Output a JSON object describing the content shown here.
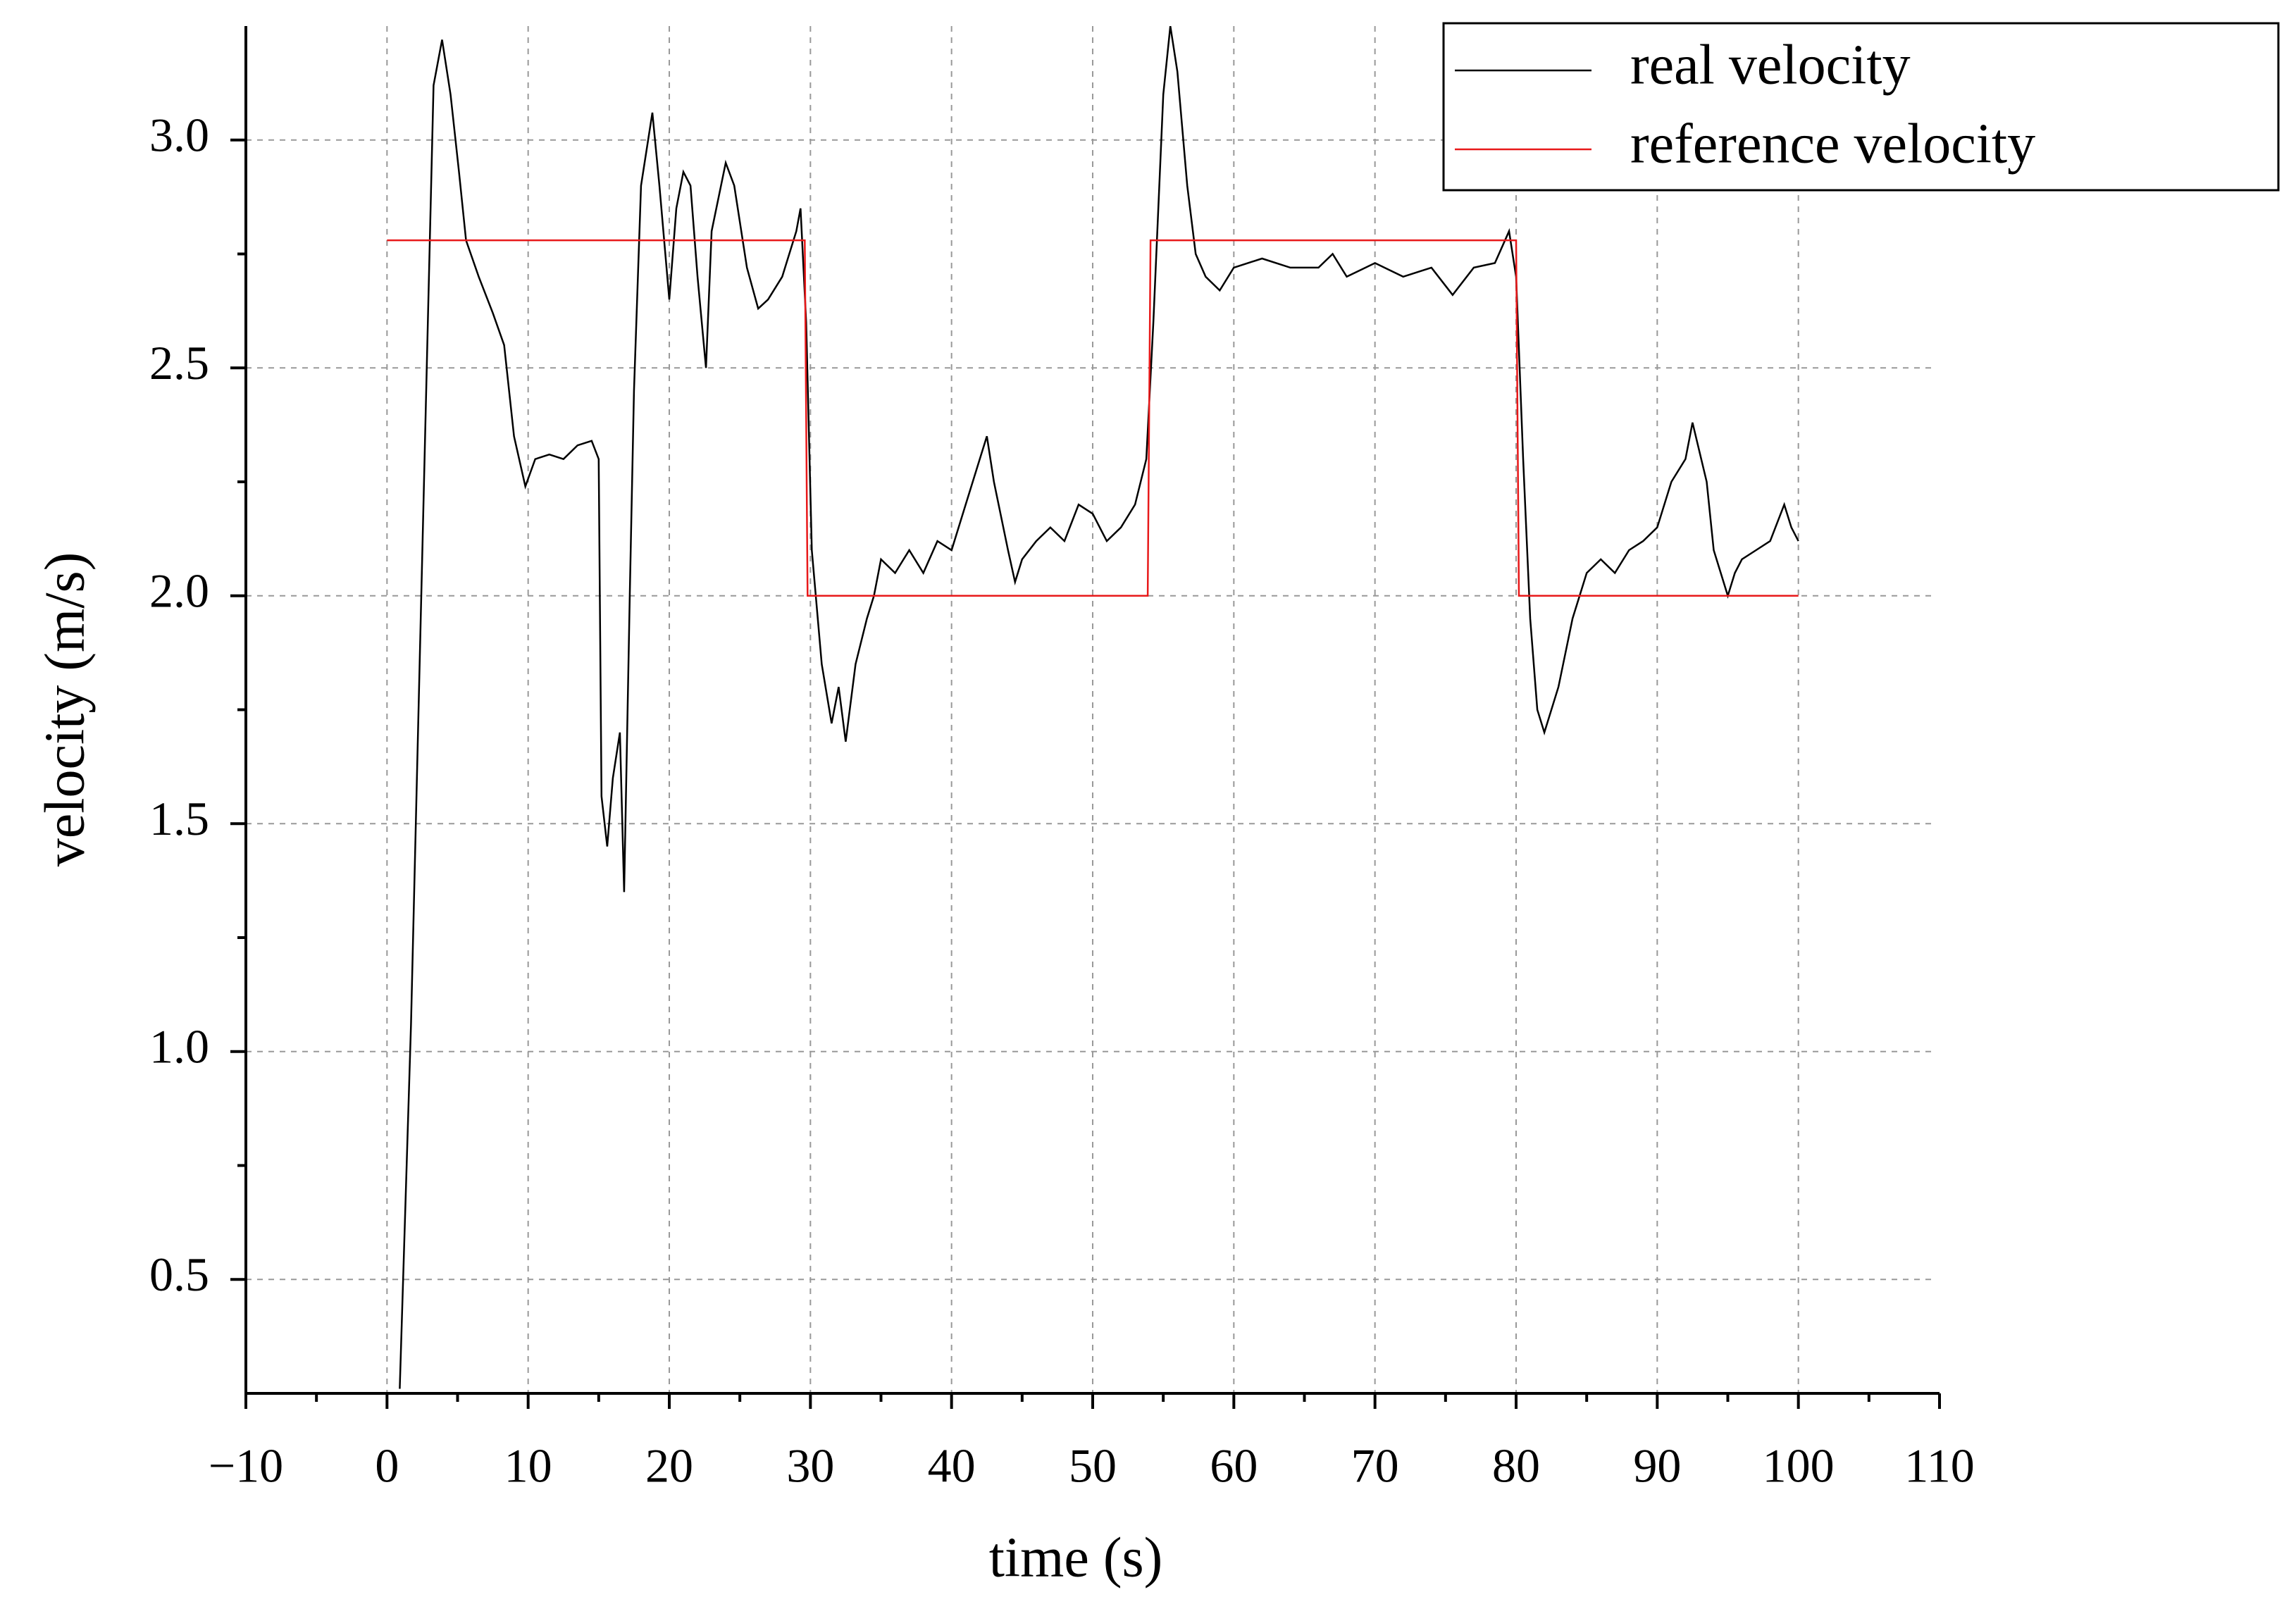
{
  "chart_data": {
    "type": "line",
    "xlabel": "time (s)",
    "ylabel": "velocity (m/s)",
    "xlim": [
      -10,
      110
    ],
    "ylim": [
      0.25,
      3.25
    ],
    "xticks": [
      {
        "value": -10,
        "label": "−10"
      },
      0,
      10,
      20,
      30,
      40,
      50,
      60,
      70,
      80,
      90,
      100,
      110
    ],
    "yticks": [
      0.5,
      {
        "value": 1,
        "label": "1.0"
      },
      1.5,
      {
        "value": 2,
        "label": "2.0"
      },
      2.5,
      {
        "value": 3,
        "label": "3.0"
      }
    ],
    "grid": true,
    "legend": "upper right",
    "series": [
      {
        "name": "real velocity",
        "color": "#000000",
        "x": [
          0.9,
          1.7,
          2.7,
          3.3,
          3.9,
          4.5,
          5.1,
          5.6,
          6.5,
          7.5,
          8.3,
          9,
          9.8,
          10.5,
          11.5,
          12.5,
          13.5,
          14.5,
          15,
          15.2,
          15.6,
          16,
          16.5,
          16.8,
          17.2,
          17.5,
          18,
          18.8,
          19.3,
          20,
          20.5,
          21,
          21.5,
          22,
          22.6,
          23,
          24,
          24.6,
          25.5,
          26.3,
          27,
          28,
          29,
          29.3,
          29.7,
          30.1,
          30.8,
          31.5,
          32,
          32.5,
          33.2,
          34,
          34.5,
          35,
          36,
          37,
          38,
          39,
          40,
          41,
          42,
          42.5,
          43,
          44,
          44.5,
          45,
          46,
          47,
          48,
          49,
          50,
          51,
          52,
          53,
          53.8,
          54.3,
          55,
          55.5,
          56,
          56.7,
          57.3,
          58,
          59,
          60,
          62,
          64,
          66,
          67,
          68,
          70,
          72,
          74,
          75.5,
          77,
          78.5,
          79.5,
          80,
          80.5,
          81,
          81.5,
          82,
          83,
          84,
          85,
          86,
          87,
          88,
          89,
          90,
          91,
          92,
          92.5,
          93.5,
          94,
          95,
          95.5,
          96,
          97,
          98,
          99,
          99.5,
          100
        ],
        "values": [
          0.26,
          1.06,
          2.35,
          3.12,
          3.22,
          3.1,
          2.93,
          2.78,
          2.7,
          2.62,
          2.55,
          2.35,
          2.24,
          2.3,
          2.31,
          2.3,
          2.33,
          2.34,
          2.3,
          1.56,
          1.45,
          1.6,
          1.7,
          1.35,
          2.0,
          2.45,
          2.9,
          3.06,
          2.9,
          2.65,
          2.85,
          2.93,
          2.9,
          2.7,
          2.5,
          2.8,
          2.95,
          2.9,
          2.72,
          2.63,
          2.65,
          2.7,
          2.8,
          2.85,
          2.6,
          2.1,
          1.85,
          1.72,
          1.8,
          1.68,
          1.85,
          1.95,
          2.0,
          2.08,
          2.05,
          2.1,
          2.05,
          2.12,
          2.1,
          2.2,
          2.3,
          2.35,
          2.25,
          2.1,
          2.03,
          2.08,
          2.12,
          2.15,
          2.12,
          2.2,
          2.18,
          2.12,
          2.15,
          2.2,
          2.3,
          2.6,
          3.1,
          3.25,
          3.15,
          2.9,
          2.75,
          2.7,
          2.67,
          2.72,
          2.74,
          2.72,
          2.72,
          2.75,
          2.7,
          2.73,
          2.7,
          2.72,
          2.66,
          2.72,
          2.73,
          2.8,
          2.7,
          2.3,
          1.95,
          1.75,
          1.7,
          1.8,
          1.95,
          2.05,
          2.08,
          2.05,
          2.1,
          2.12,
          2.15,
          2.25,
          2.3,
          2.38,
          2.25,
          2.1,
          2.0,
          2.05,
          2.08,
          2.1,
          2.12,
          2.2,
          2.15,
          2.12
        ]
      },
      {
        "name": "reference velocity",
        "color": "#e8191a",
        "x": [
          0,
          29.6,
          29.8,
          53.9,
          54.1,
          80.0,
          80.2,
          100
        ],
        "values": [
          2.78,
          2.78,
          2.0,
          2.0,
          2.78,
          2.78,
          2.0,
          2.0
        ]
      }
    ]
  }
}
